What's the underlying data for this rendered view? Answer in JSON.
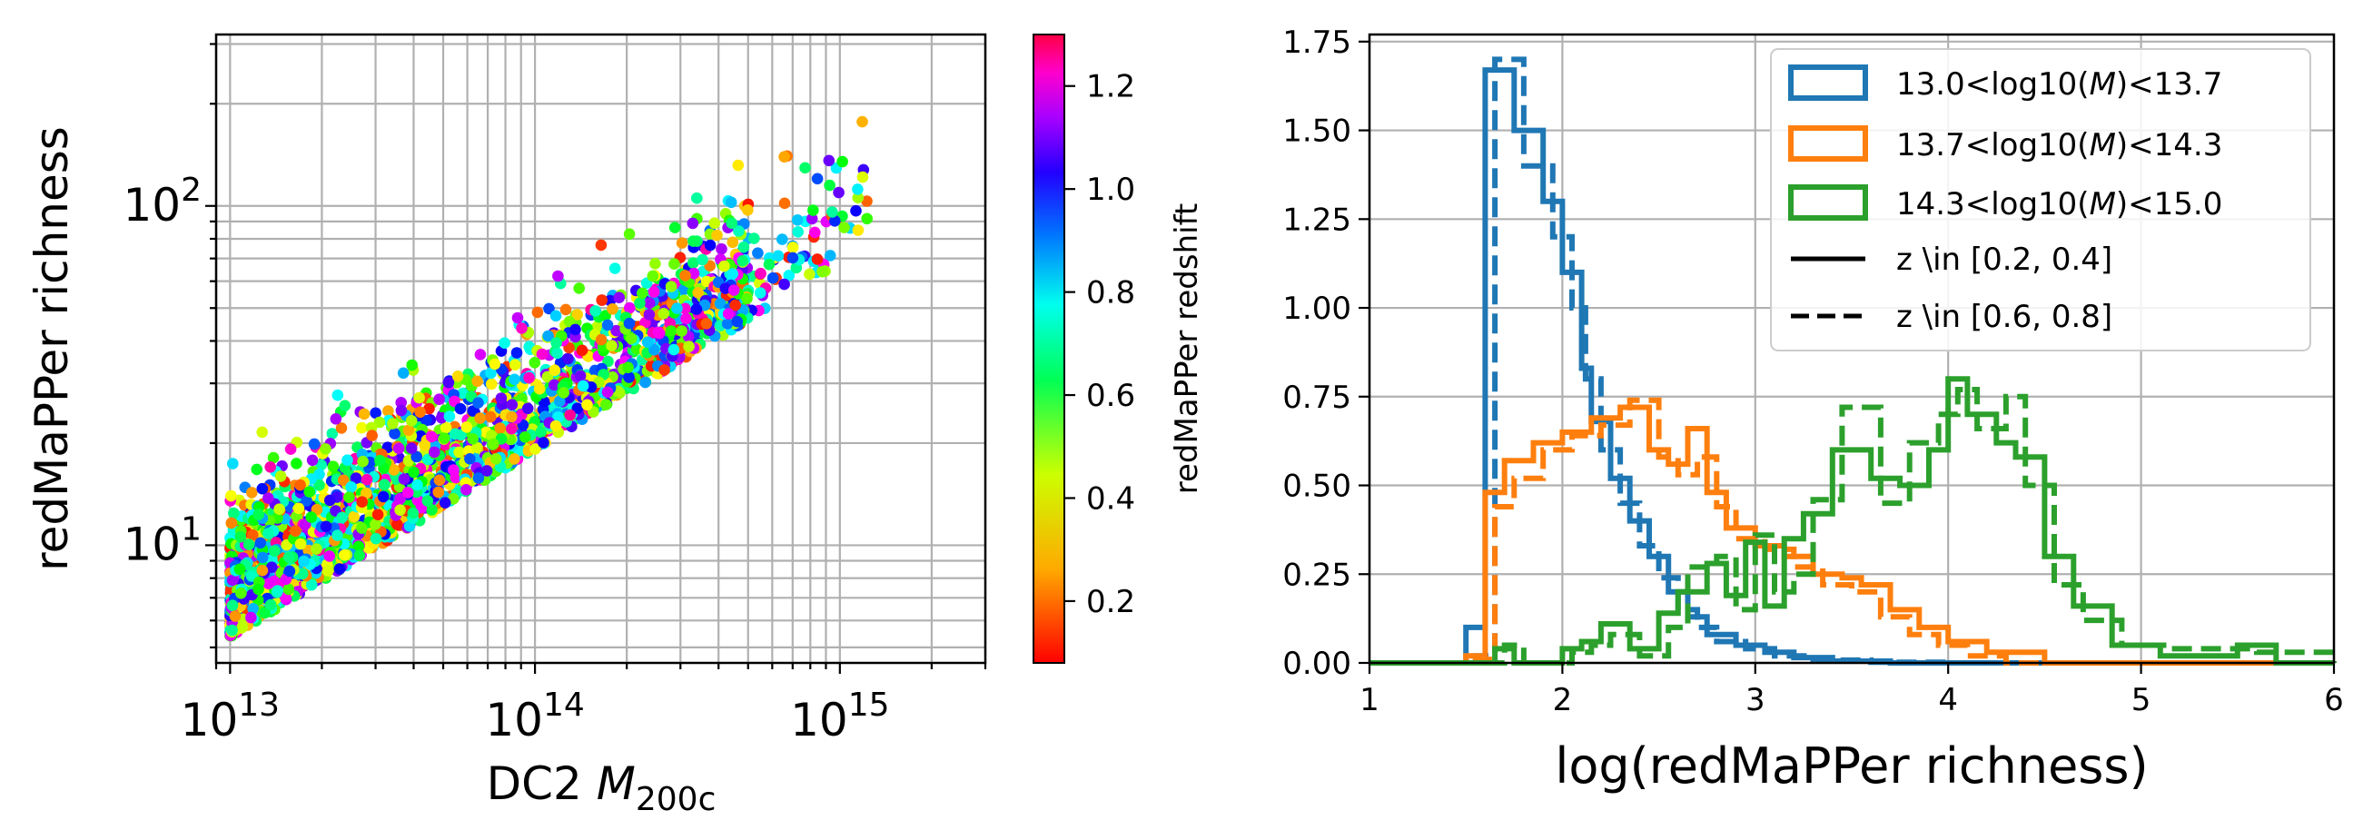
{
  "chart_data": [
    {
      "type": "scatter",
      "xlabel_main": "DC2 ",
      "xlabel_italic": "M",
      "xlabel_sub": "200c",
      "ylabel": "redMaPPer richness",
      "xscale": "log",
      "yscale": "log",
      "xlim": [
        9000000000000,
        3000000000000000
      ],
      "ylim": [
        4.5,
        320
      ],
      "xticks": [
        {
          "value": 10000000000000,
          "base": "10",
          "exp": "13"
        },
        {
          "value": 100000000000000,
          "base": "10",
          "exp": "14"
        },
        {
          "value": 1000000000000000,
          "base": "10",
          "exp": "15"
        }
      ],
      "yticks": [
        {
          "value": 10,
          "base": "10",
          "exp": "1"
        },
        {
          "value": 100,
          "base": "10",
          "exp": "2"
        }
      ],
      "grid": true,
      "colorbar": {
        "label": "redMaPPer redshift",
        "range": [
          0.08,
          1.3
        ],
        "ticks": [
          "0.2",
          "0.4",
          "0.6",
          "0.8",
          "1.0",
          "1.2"
        ],
        "colormap": "gist_rainbow"
      },
      "points_note_seed": 7,
      "points_count": 2600
    },
    {
      "type": "histogram",
      "xlabel": "log(redMaPPer richness)",
      "ylabel": "",
      "xlim": [
        1,
        6
      ],
      "ylim": [
        0,
        1.77
      ],
      "xticks": [
        "1",
        "2",
        "3",
        "4",
        "5",
        "6"
      ],
      "yticks": [
        "0.00",
        "0.25",
        "0.50",
        "0.75",
        "1.00",
        "1.25",
        "1.50",
        "1.75"
      ],
      "grid": true,
      "legend_position": "top-right",
      "legend": [
        {
          "pre": "13.0<log",
          "mid": "10(",
          "ital": "M",
          "post": ")<13.7",
          "color": "#1f77b4",
          "kind": "patch"
        },
        {
          "pre": "13.7<log",
          "mid": "10(",
          "ital": "M",
          "post": ")<14.3",
          "color": "#ff7f0e",
          "kind": "patch"
        },
        {
          "pre": "14.3<log",
          "mid": "10(",
          "ital": "M",
          "post": ")<15.0",
          "color": "#2ca02c",
          "kind": "patch"
        },
        {
          "text": "z \\in [0.2, 0.4]",
          "kind": "solid"
        },
        {
          "text": "z \\in [0.6, 0.8]",
          "kind": "dashed"
        }
      ],
      "series": [
        {
          "color": "#1f77b4",
          "style": "solid",
          "edges": [
            1.5,
            1.6,
            1.75,
            1.9,
            2.0,
            2.1,
            2.15,
            2.25,
            2.35,
            2.45,
            2.55,
            2.65,
            2.75,
            2.9,
            3.05,
            3.2,
            3.4,
            3.7,
            4.1,
            6.0
          ],
          "values": [
            0.1,
            1.67,
            1.5,
            1.3,
            1.1,
            0.83,
            0.68,
            0.52,
            0.4,
            0.3,
            0.2,
            0.13,
            0.08,
            0.05,
            0.03,
            0.015,
            0.005,
            0.0,
            0.0
          ]
        },
        {
          "color": "#1f77b4",
          "style": "dashed",
          "edges": [
            1.55,
            1.65,
            1.8,
            1.95,
            2.05,
            2.12,
            2.2,
            2.3,
            2.4,
            2.5,
            2.6,
            2.7,
            2.8,
            2.95,
            3.1,
            3.3,
            3.6,
            4.0,
            6.0
          ],
          "values": [
            0.02,
            1.7,
            1.4,
            1.2,
            1.0,
            0.8,
            0.6,
            0.45,
            0.33,
            0.24,
            0.15,
            0.1,
            0.06,
            0.04,
            0.02,
            0.008,
            0.002,
            0.0
          ]
        },
        {
          "color": "#ff7f0e",
          "style": "solid",
          "edges": [
            1.5,
            1.6,
            1.7,
            1.85,
            2.0,
            2.15,
            2.3,
            2.45,
            2.55,
            2.65,
            2.75,
            2.85,
            3.0,
            3.15,
            3.3,
            3.45,
            3.55,
            3.7,
            3.85,
            4.0,
            4.2,
            4.5,
            6.0
          ],
          "values": [
            0.02,
            0.48,
            0.57,
            0.62,
            0.65,
            0.69,
            0.72,
            0.6,
            0.56,
            0.66,
            0.48,
            0.38,
            0.33,
            0.3,
            0.25,
            0.24,
            0.22,
            0.15,
            0.1,
            0.06,
            0.03,
            0.0
          ]
        },
        {
          "color": "#ff7f0e",
          "style": "dashed",
          "edges": [
            1.55,
            1.65,
            1.75,
            1.9,
            2.05,
            2.2,
            2.35,
            2.5,
            2.6,
            2.7,
            2.8,
            2.9,
            3.05,
            3.2,
            3.35,
            3.5,
            3.65,
            3.8,
            3.95,
            4.1,
            4.3,
            6.0
          ],
          "values": [
            0.01,
            0.44,
            0.52,
            0.6,
            0.64,
            0.67,
            0.74,
            0.58,
            0.53,
            0.58,
            0.44,
            0.35,
            0.32,
            0.27,
            0.22,
            0.2,
            0.13,
            0.08,
            0.05,
            0.02,
            0.0
          ]
        },
        {
          "color": "#2ca02c",
          "style": "solid",
          "edges": [
            1.0,
            1.65,
            1.75,
            2.0,
            2.1,
            2.2,
            2.35,
            2.5,
            2.6,
            2.75,
            2.85,
            2.95,
            3.05,
            3.15,
            3.25,
            3.4,
            3.6,
            3.75,
            3.9,
            4.0,
            4.1,
            4.25,
            4.35,
            4.5,
            4.65,
            4.85,
            5.1,
            5.5,
            5.7,
            6.0
          ],
          "values": [
            0.0,
            0.04,
            0.0,
            0.04,
            0.06,
            0.11,
            0.04,
            0.14,
            0.2,
            0.28,
            0.19,
            0.34,
            0.16,
            0.35,
            0.42,
            0.6,
            0.52,
            0.5,
            0.6,
            0.8,
            0.7,
            0.62,
            0.58,
            0.3,
            0.16,
            0.05,
            0.02,
            0.05,
            0.0
          ]
        },
        {
          "color": "#2ca02c",
          "style": "dashed",
          "edges": [
            1.0,
            1.7,
            1.8,
            2.05,
            2.15,
            2.25,
            2.4,
            2.55,
            2.65,
            2.8,
            2.9,
            3.0,
            3.1,
            3.2,
            3.3,
            3.45,
            3.65,
            3.8,
            3.95,
            4.05,
            4.15,
            4.3,
            4.4,
            4.55,
            4.7,
            4.9,
            5.15,
            5.6,
            6.0
          ],
          "values": [
            0.0,
            0.05,
            0.0,
            0.03,
            0.05,
            0.08,
            0.02,
            0.1,
            0.27,
            0.3,
            0.15,
            0.36,
            0.2,
            0.25,
            0.46,
            0.72,
            0.45,
            0.62,
            0.7,
            0.77,
            0.66,
            0.75,
            0.5,
            0.22,
            0.12,
            0.05,
            0.04,
            0.03
          ]
        }
      ]
    }
  ]
}
